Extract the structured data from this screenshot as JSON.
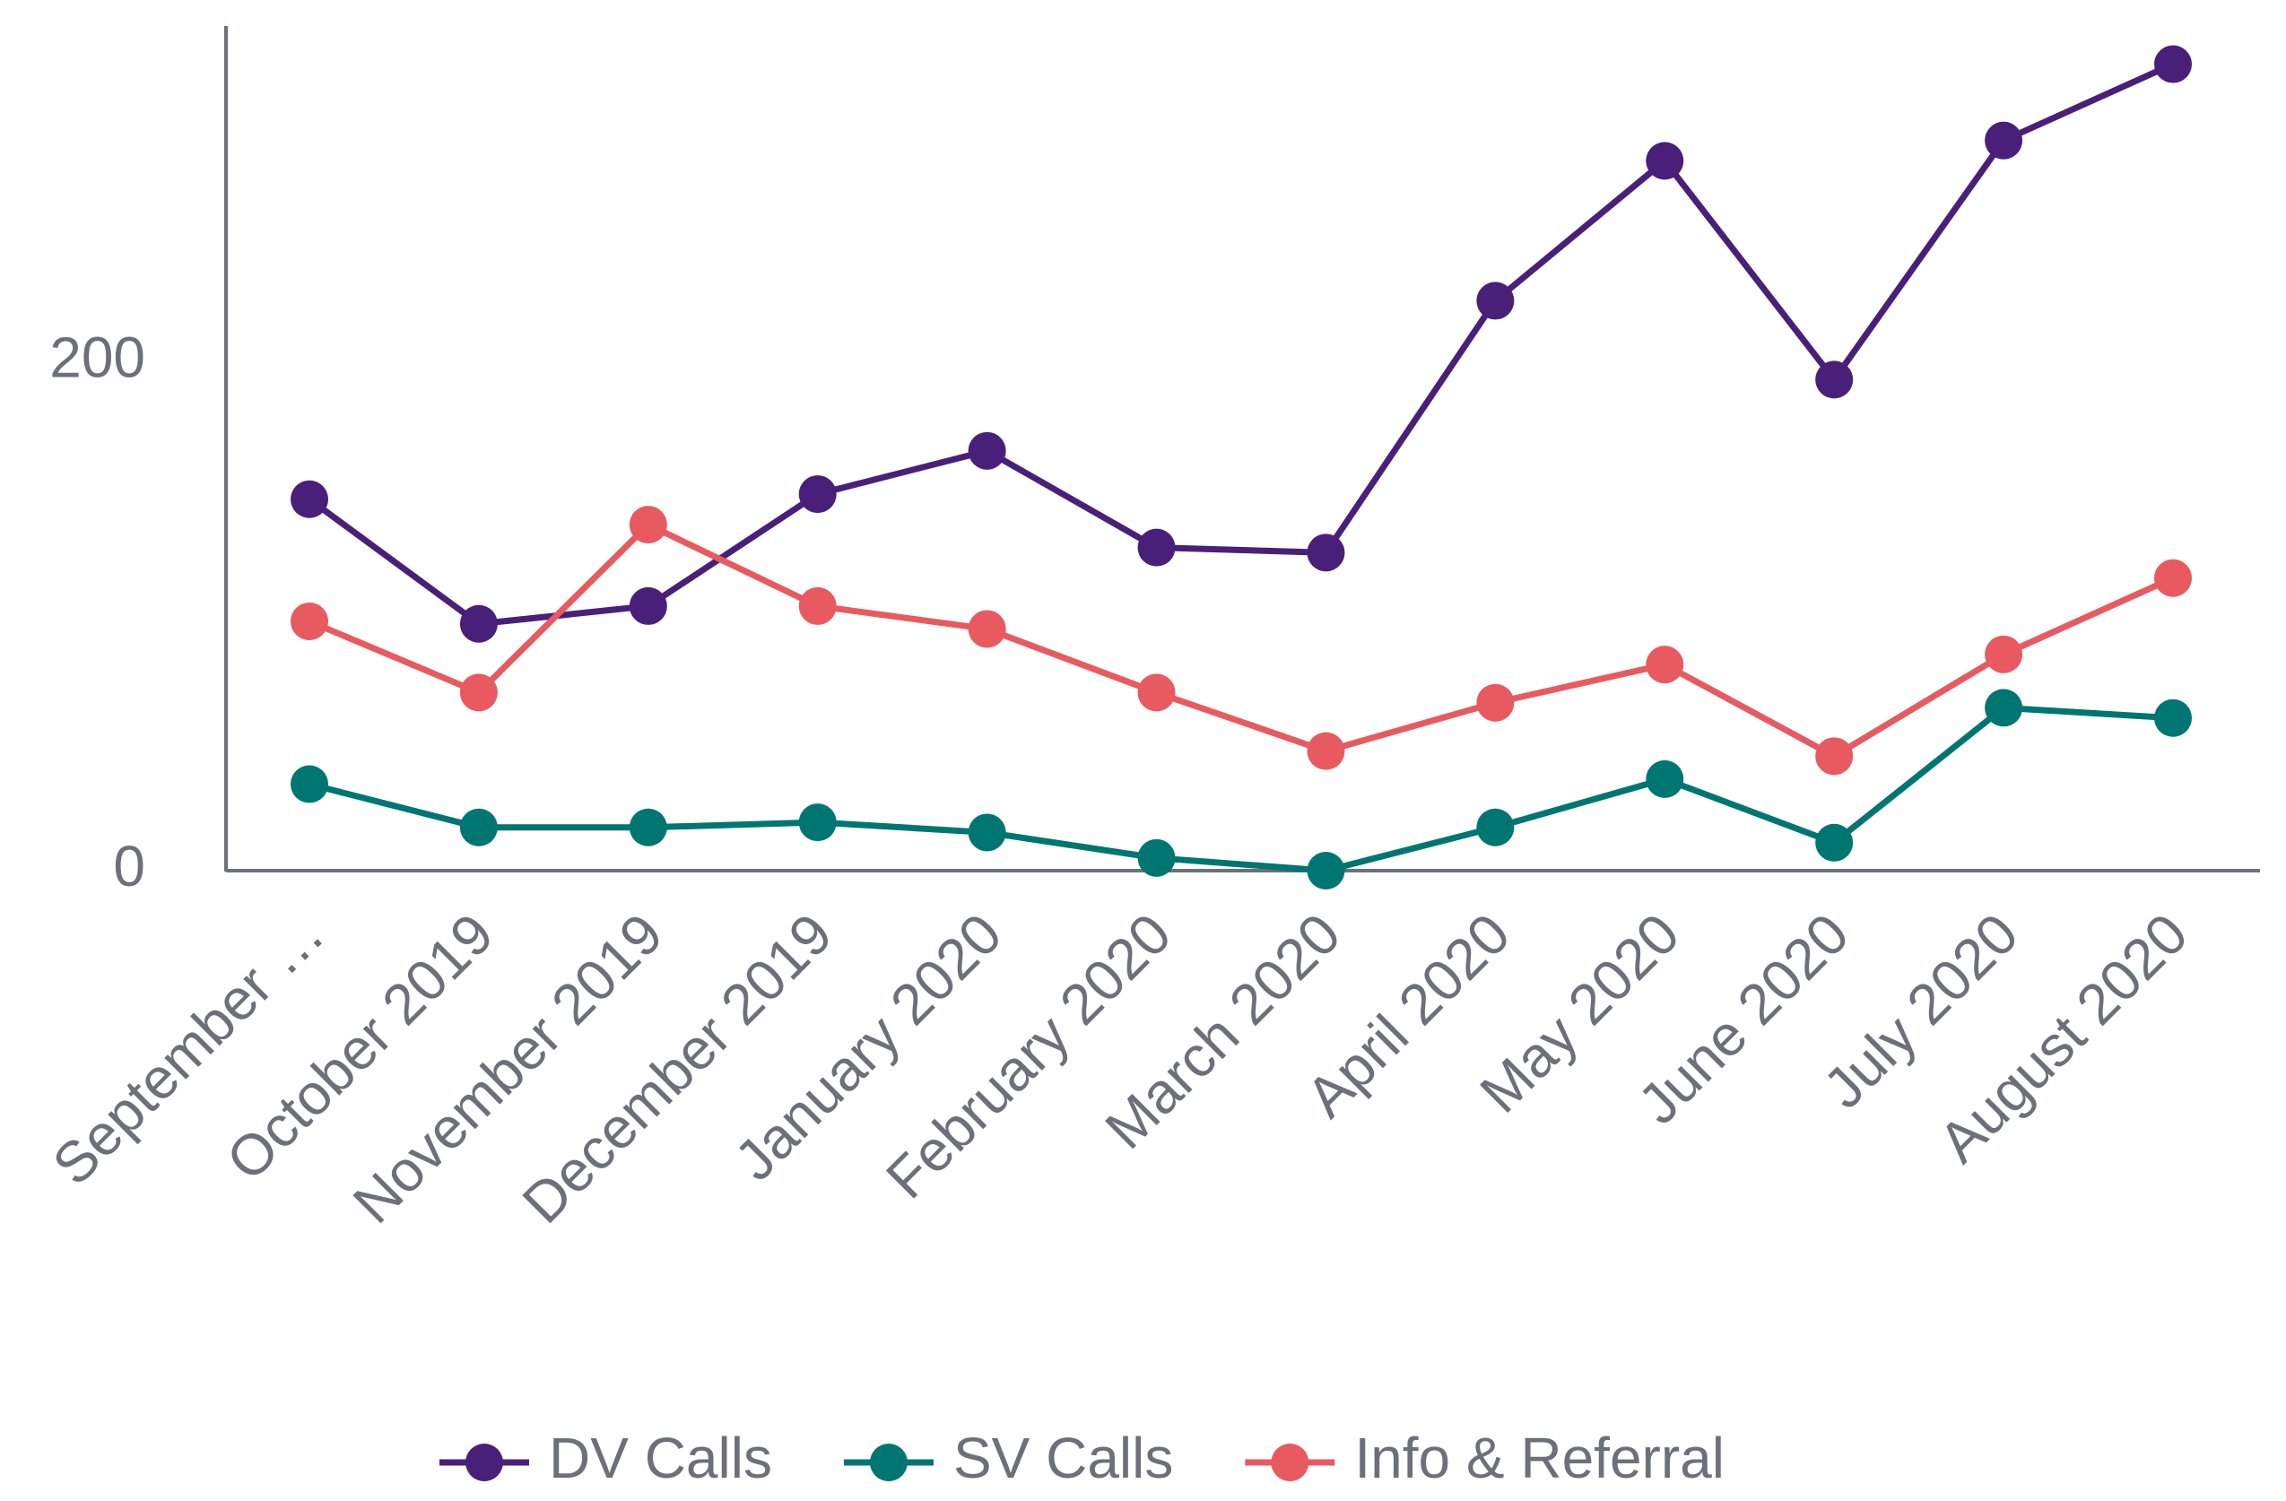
{
  "chart_data": {
    "type": "line",
    "categories": [
      "September …",
      "October 2019",
      "November 2019",
      "December 2019",
      "January 2020",
      "February 2020",
      "March 2020",
      "April 2020",
      "May 2020",
      "June 2020",
      "July 2020",
      "August 2020"
    ],
    "series": [
      {
        "name": "DV Calls",
        "color": "#4a1f7a",
        "values": [
          146,
          97,
          104,
          148,
          165,
          127,
          125,
          224,
          279,
          193,
          287,
          317
        ]
      },
      {
        "name": "SV Calls",
        "color": "#007672",
        "values": [
          34,
          17,
          17,
          19,
          15,
          5,
          0,
          17,
          36,
          11,
          64,
          60
        ]
      },
      {
        "name": "Info & Referral",
        "color": "#e85a60",
        "values": [
          98,
          70,
          136,
          104,
          95,
          70,
          47,
          66,
          81,
          45,
          85,
          115
        ]
      }
    ],
    "ylim": [
      0,
      332
    ],
    "yticks": [
      0,
      200
    ],
    "legend": "bottom"
  }
}
